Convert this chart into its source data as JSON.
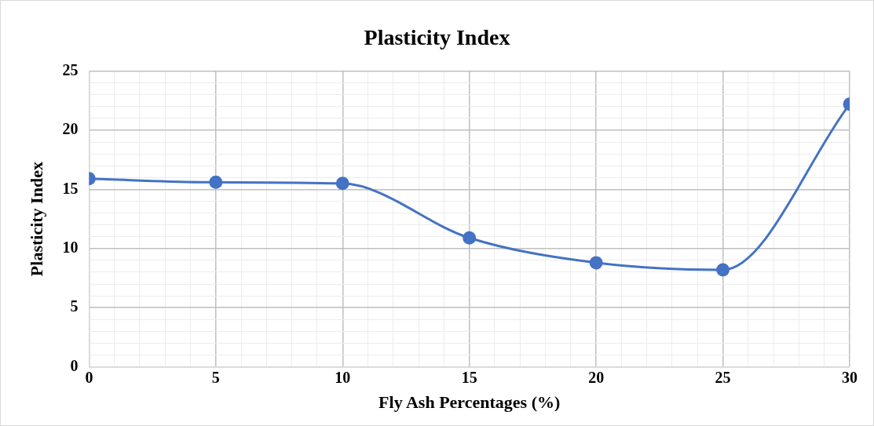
{
  "chart_data": {
    "type": "line",
    "title": "Plasticity Index",
    "xlabel": "Fly Ash Percentages (%)",
    "ylabel": "Plasticity Index",
    "x": [
      0,
      5,
      10,
      15,
      20,
      25,
      30
    ],
    "series": [
      {
        "color": "#4472c4",
        "values": [
          15.9,
          15.6,
          15.5,
          10.9,
          8.8,
          8.2,
          22.2
        ]
      }
    ],
    "xlim": [
      0,
      30
    ],
    "ylim": [
      0,
      25
    ],
    "xticks": [
      0,
      {
        "value": 1,
        "label": null
      },
      {
        "value": 2,
        "label": null
      },
      {
        "value": 3,
        "label": null
      },
      {
        "value": 4,
        "label": null
      },
      5,
      {
        "value": 6,
        "label": null
      },
      {
        "value": 7,
        "label": null
      },
      {
        "value": 8,
        "label": null
      },
      {
        "value": 9,
        "label": null
      },
      10,
      {
        "value": 11,
        "label": null
      },
      {
        "value": 12,
        "label": null
      },
      {
        "value": 13,
        "label": null
      },
      {
        "value": 14,
        "label": null
      },
      15,
      {
        "value": 16,
        "label": null
      },
      {
        "value": 17,
        "label": null
      },
      {
        "value": 18,
        "label": null
      },
      {
        "value": 19,
        "label": null
      },
      20,
      {
        "value": 21,
        "label": null
      },
      {
        "value": 22,
        "label": null
      },
      {
        "value": 23,
        "label": null
      },
      {
        "value": 24,
        "label": null
      },
      25,
      {
        "value": 26,
        "label": null
      },
      {
        "value": 27,
        "label": null
      },
      {
        "value": 28,
        "label": null
      },
      {
        "value": 29,
        "label": null
      },
      30
    ],
    "yticks": [
      0,
      {
        "value": 1,
        "label": null
      },
      {
        "value": 2,
        "label": null
      },
      {
        "value": 3,
        "label": null
      },
      {
        "value": 4,
        "label": null
      },
      5,
      {
        "value": 6,
        "label": null
      },
      {
        "value": 7,
        "label": null
      },
      {
        "value": 8,
        "label": null
      },
      {
        "value": 9,
        "label": null
      },
      10,
      {
        "value": 11,
        "label": null
      },
      {
        "value": 12,
        "label": null
      },
      {
        "value": 13,
        "label": null
      },
      {
        "value": 14,
        "label": null
      },
      15,
      {
        "value": 16,
        "label": null
      },
      {
        "value": 17,
        "label": null
      },
      {
        "value": 18,
        "label": null
      },
      {
        "value": 19,
        "label": null
      },
      20,
      {
        "value": 21,
        "label": null
      },
      {
        "value": 22,
        "label": null
      },
      {
        "value": 23,
        "label": null
      },
      {
        "value": 24,
        "label": null
      },
      25
    ],
    "grid": true,
    "legend": false,
    "marker": "circle",
    "line_style": "solid"
  }
}
